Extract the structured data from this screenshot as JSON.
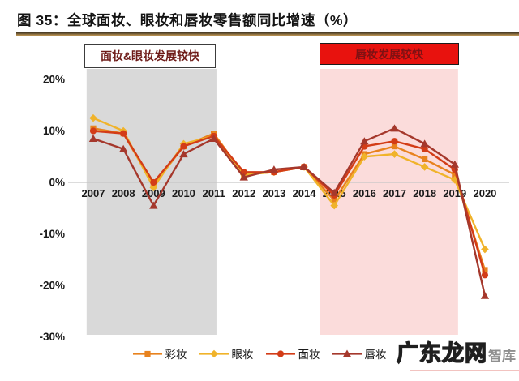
{
  "header": {
    "title": "图 35：全球面妆、眼妆和唇妆零售额同比增速（%）"
  },
  "annotations": {
    "left_box": "面妆&眼妆发展较快",
    "right_box": "唇妆发展较快"
  },
  "watermark": {
    "main": "广东龙网",
    "suffix": "智库"
  },
  "chart_data": {
    "type": "line",
    "title": "全球面妆、眼妆和唇妆零售额同比增速（%）",
    "x": [
      2007,
      2008,
      2009,
      2010,
      2011,
      2012,
      2013,
      2014,
      2015,
      2016,
      2017,
      2018,
      2019,
      2020
    ],
    "series": [
      {
        "id": "color-makeup",
        "name": "彩妆",
        "marker": "square",
        "color": "#e8821e",
        "values": [
          10.5,
          9.5,
          -0.5,
          7,
          9.5,
          1.5,
          2,
          3,
          -3.5,
          5.5,
          7,
          4.5,
          1.5,
          -17
        ]
      },
      {
        "id": "eye-makeup",
        "name": "眼妆",
        "marker": "diamond",
        "color": "#f0b32a",
        "values": [
          12.5,
          10,
          -1,
          7.5,
          9,
          1.5,
          2,
          3,
          -4.5,
          5,
          5.5,
          3,
          0.5,
          -13
        ]
      },
      {
        "id": "face-makeup",
        "name": "面妆",
        "marker": "circle",
        "color": "#d33c17",
        "values": [
          10,
          9.5,
          0,
          7,
          9,
          2,
          2,
          3,
          -2.5,
          7,
          8,
          6.5,
          2.5,
          -18
        ]
      },
      {
        "id": "lip-makeup",
        "name": "唇妆",
        "marker": "triangle",
        "color": "#a5382c",
        "values": [
          8.5,
          6.5,
          -4.5,
          5.5,
          8.5,
          1,
          2.5,
          3,
          -2,
          8,
          10.5,
          7.5,
          3.5,
          -22
        ]
      }
    ],
    "yticks": [
      20,
      10,
      0,
      -10,
      -20,
      -30
    ],
    "ytick_suffix": "%",
    "ylim": [
      -30,
      20
    ],
    "grid": "zero-line-only",
    "legend_position": "bottom",
    "regions": [
      {
        "id": "gray",
        "x_start": 2006.78,
        "x_end": 2011.09,
        "color": "#d9d9d9"
      },
      {
        "id": "pink",
        "x_start": 2014.53,
        "x_end": 2019.11,
        "color": "#fbdcdb"
      }
    ]
  }
}
